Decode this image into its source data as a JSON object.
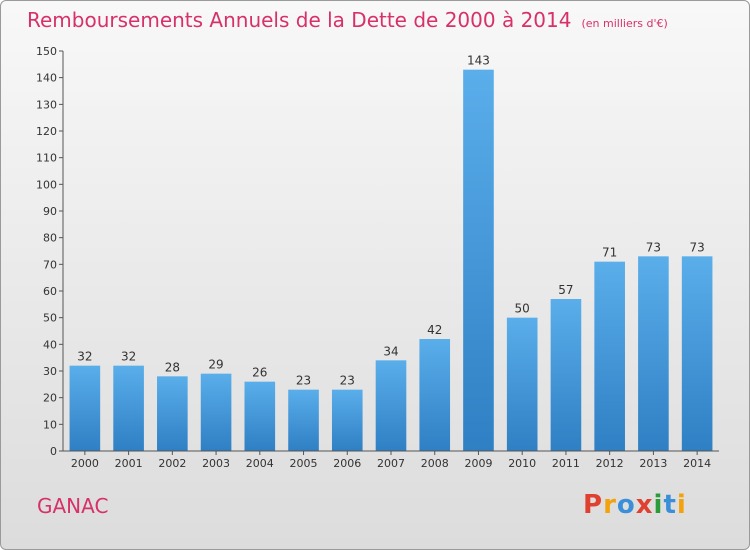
{
  "header": {
    "title": "Remboursements Annuels de la Dette de 2000 à 2014",
    "unit": "(en milliers d'€)"
  },
  "commune": "GANAC",
  "logo": "Proxiti",
  "colors": {
    "title": "#d8306a",
    "bar": "#4a9ee0",
    "logo": [
      "#e0402f",
      "#f2a20c",
      "#3a8fd8",
      "#e0402f",
      "#2a9a3a",
      "#3a8fd8",
      "#f2a20c"
    ]
  },
  "chart_data": {
    "type": "bar",
    "title": "Remboursements Annuels de la Dette de 2000 à 2014",
    "categories": [
      "2000",
      "2001",
      "2002",
      "2003",
      "2004",
      "2005",
      "2006",
      "2007",
      "2008",
      "2009",
      "2010",
      "2011",
      "2012",
      "2013",
      "2014"
    ],
    "values": [
      32,
      32,
      28,
      29,
      26,
      23,
      23,
      34,
      42,
      143,
      50,
      57,
      71,
      73,
      73
    ],
    "ylim": [
      0,
      150
    ],
    "ystep": 10,
    "grid": false,
    "legend": "none"
  }
}
